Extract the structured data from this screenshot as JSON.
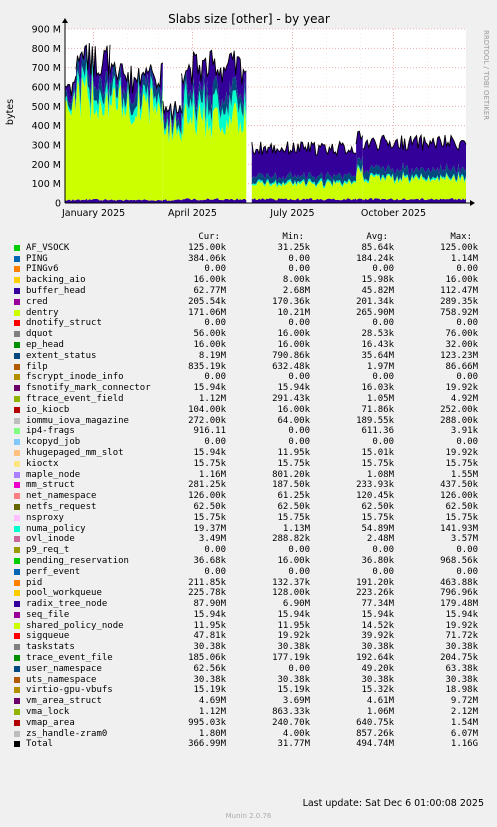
{
  "chart_data": {
    "type": "area",
    "title": "Slabs size [other] - by year",
    "ylabel": "bytes",
    "ylim": [
      0,
      900000000
    ],
    "yticks": [
      "0",
      "100 M",
      "200 M",
      "300 M",
      "400 M",
      "500 M",
      "600 M",
      "700 M",
      "800 M",
      "900 M"
    ],
    "xticks": [
      "January 2025",
      "April 2025",
      "July 2025",
      "October 2025"
    ],
    "side_label": "RRDTOOL / TOBI OETIKER",
    "grid": true,
    "profile": {
      "x_start": "2024-12-06",
      "x_end": "2025-12-06",
      "x_ticks_dates": [
        "2025-01-01",
        "2025-04-01",
        "2025-07-01",
        "2025-10-01"
      ],
      "series_order": [
        "buffer_head",
        "dentry",
        "numa_policy",
        "extent_status",
        "Total"
      ],
      "phases": [
        {
          "from": "2024-12-06",
          "to": "2024-12-16",
          "buffer_head": 15000000,
          "dentry": 530000000,
          "numa_policy": 20000000,
          "extent_status": 30000000,
          "total": 630000000
        },
        {
          "from": "2024-12-16",
          "to": "2025-01-16",
          "buffer_head": 18000000,
          "dentry": 540000000,
          "numa_policy": 60000000,
          "extent_status": 70000000,
          "total": 760000000
        },
        {
          "from": "2025-01-16",
          "to": "2025-03-05",
          "buffer_head": 15000000,
          "dentry": 500000000,
          "numa_policy": 50000000,
          "extent_status": 60000000,
          "total": 660000000
        },
        {
          "from": "2025-03-05",
          "to": "2025-03-22",
          "buffer_head": 15000000,
          "dentry": 380000000,
          "numa_policy": 30000000,
          "extent_status": 40000000,
          "total": 490000000
        },
        {
          "from": "2025-03-22",
          "to": "2025-05-20",
          "buffer_head": 20000000,
          "dentry": 420000000,
          "numa_policy": 90000000,
          "extent_status": 60000000,
          "total": 720000000
        },
        {
          "from": "2025-05-25",
          "to": "2025-08-28",
          "buffer_head": 20000000,
          "dentry": 80000000,
          "numa_policy": 10000000,
          "extent_status": 30000000,
          "total": 290000000
        },
        {
          "from": "2025-08-28",
          "to": "2025-09-03",
          "buffer_head": 20000000,
          "dentry": 150000000,
          "numa_policy": 10000000,
          "extent_status": 40000000,
          "total": 340000000
        },
        {
          "from": "2025-09-03",
          "to": "2025-12-06",
          "buffer_head": 20000000,
          "dentry": 110000000,
          "numa_policy": 10000000,
          "extent_status": 40000000,
          "total": 320000000
        }
      ]
    },
    "legend_header": [
      "Cur:",
      "Min:",
      "Avg:",
      "Max:"
    ],
    "series": [
      {
        "name": "AF_VSOCK",
        "color": "#00cc00",
        "cur": "125.00k",
        "min": "31.25k",
        "avg": "85.64k",
        "max": "125.00k"
      },
      {
        "name": "PING",
        "color": "#0066b3",
        "cur": "384.06k",
        "min": "0.00",
        "avg": "184.24k",
        "max": "1.14M"
      },
      {
        "name": "PINGv6",
        "color": "#ff8000",
        "cur": "0.00",
        "min": "0.00",
        "avg": "0.00",
        "max": "0.00"
      },
      {
        "name": "backing_aio",
        "color": "#ffcc00",
        "cur": "16.00k",
        "min": "8.00k",
        "avg": "15.98k",
        "max": "16.00k"
      },
      {
        "name": "buffer_head",
        "color": "#330099",
        "cur": "62.77M",
        "min": "2.68M",
        "avg": "45.82M",
        "max": "112.47M"
      },
      {
        "name": "cred",
        "color": "#990099",
        "cur": "205.54k",
        "min": "170.36k",
        "avg": "201.34k",
        "max": "289.35k"
      },
      {
        "name": "dentry",
        "color": "#ccff00",
        "cur": "171.06M",
        "min": "10.21M",
        "avg": "265.90M",
        "max": "758.92M"
      },
      {
        "name": "dnotify_struct",
        "color": "#ff0000",
        "cur": "0.00",
        "min": "0.00",
        "avg": "0.00",
        "max": "0.00"
      },
      {
        "name": "dquot",
        "color": "#808080",
        "cur": "56.00k",
        "min": "16.00k",
        "avg": "28.53k",
        "max": "76.00k"
      },
      {
        "name": "ep_head",
        "color": "#008f00",
        "cur": "16.00k",
        "min": "16.00k",
        "avg": "16.43k",
        "max": "32.00k"
      },
      {
        "name": "extent_status",
        "color": "#00487d",
        "cur": "8.19M",
        "min": "790.86k",
        "avg": "35.64M",
        "max": "123.23M"
      },
      {
        "name": "filp",
        "color": "#b35a00",
        "cur": "835.19k",
        "min": "632.48k",
        "avg": "1.97M",
        "max": "86.66M"
      },
      {
        "name": "fscrypt_inode_info",
        "color": "#b38f00",
        "cur": "0.00",
        "min": "0.00",
        "avg": "0.00",
        "max": "0.00"
      },
      {
        "name": "fsnotify_mark_connector",
        "color": "#6b006b",
        "cur": "15.94k",
        "min": "15.94k",
        "avg": "16.03k",
        "max": "19.92k"
      },
      {
        "name": "ftrace_event_field",
        "color": "#8fb300",
        "cur": "1.12M",
        "min": "291.43k",
        "avg": "1.05M",
        "max": "4.92M"
      },
      {
        "name": "io_kiocb",
        "color": "#b30000",
        "cur": "104.00k",
        "min": "16.00k",
        "avg": "71.86k",
        "max": "252.00k"
      },
      {
        "name": "iommu_iova_magazine",
        "color": "#bebebe",
        "cur": "272.00k",
        "min": "64.00k",
        "avg": "189.55k",
        "max": "288.00k"
      },
      {
        "name": "ip4-frags",
        "color": "#80ff80",
        "cur": "916.11",
        "min": "0.00",
        "avg": "611.36",
        "max": "3.91k"
      },
      {
        "name": "kcopyd_job",
        "color": "#80c9ff",
        "cur": "0.00",
        "min": "0.00",
        "avg": "0.00",
        "max": "0.00"
      },
      {
        "name": "khugepaged_mm_slot",
        "color": "#ffc080",
        "cur": "15.94k",
        "min": "11.95k",
        "avg": "15.01k",
        "max": "19.92k"
      },
      {
        "name": "kioctx",
        "color": "#ffe680",
        "cur": "15.75k",
        "min": "15.75k",
        "avg": "15.75k",
        "max": "15.75k"
      },
      {
        "name": "maple_node",
        "color": "#aa80ff",
        "cur": "1.16M",
        "min": "801.20k",
        "avg": "1.08M",
        "max": "1.55M"
      },
      {
        "name": "mm_struct",
        "color": "#ee00cc",
        "cur": "281.25k",
        "min": "187.50k",
        "avg": "233.93k",
        "max": "437.50k"
      },
      {
        "name": "net_namespace",
        "color": "#ff8080",
        "cur": "126.00k",
        "min": "61.25k",
        "avg": "120.45k",
        "max": "126.00k"
      },
      {
        "name": "netfs_request",
        "color": "#666600",
        "cur": "62.50k",
        "min": "62.50k",
        "avg": "62.50k",
        "max": "62.50k"
      },
      {
        "name": "nsproxy",
        "color": "#ffbfff",
        "cur": "15.75k",
        "min": "15.75k",
        "avg": "15.75k",
        "max": "15.75k"
      },
      {
        "name": "numa_policy",
        "color": "#00ffcc",
        "cur": "19.37M",
        "min": "1.13M",
        "avg": "54.89M",
        "max": "141.93M"
      },
      {
        "name": "ovl_inode",
        "color": "#cc6699",
        "cur": "3.49M",
        "min": "288.82k",
        "avg": "2.48M",
        "max": "3.57M"
      },
      {
        "name": "p9_req_t",
        "color": "#999900",
        "cur": "0.00",
        "min": "0.00",
        "avg": "0.00",
        "max": "0.00"
      },
      {
        "name": "pending_reservation",
        "color": "#00cc00",
        "cur": "36.68k",
        "min": "16.00k",
        "avg": "36.80k",
        "max": "968.56k"
      },
      {
        "name": "perf_event",
        "color": "#0066b3",
        "cur": "0.00",
        "min": "0.00",
        "avg": "0.00",
        "max": "0.00"
      },
      {
        "name": "pid",
        "color": "#ff8000",
        "cur": "211.85k",
        "min": "132.37k",
        "avg": "191.20k",
        "max": "463.88k"
      },
      {
        "name": "pool_workqueue",
        "color": "#ffcc00",
        "cur": "225.78k",
        "min": "128.00k",
        "avg": "223.26k",
        "max": "796.96k"
      },
      {
        "name": "radix_tree_node",
        "color": "#330099",
        "cur": "87.90M",
        "min": "6.90M",
        "avg": "77.34M",
        "max": "179.48M"
      },
      {
        "name": "seq_file",
        "color": "#990099",
        "cur": "15.94k",
        "min": "15.94k",
        "avg": "15.94k",
        "max": "15.94k"
      },
      {
        "name": "shared_policy_node",
        "color": "#ccff00",
        "cur": "11.95k",
        "min": "11.95k",
        "avg": "14.52k",
        "max": "19.92k"
      },
      {
        "name": "sigqueue",
        "color": "#ff0000",
        "cur": "47.81k",
        "min": "19.92k",
        "avg": "39.92k",
        "max": "71.72k"
      },
      {
        "name": "taskstats",
        "color": "#808080",
        "cur": "30.38k",
        "min": "30.38k",
        "avg": "30.38k",
        "max": "30.38k"
      },
      {
        "name": "trace_event_file",
        "color": "#008f00",
        "cur": "185.06k",
        "min": "177.19k",
        "avg": "192.64k",
        "max": "204.75k"
      },
      {
        "name": "user_namespace",
        "color": "#00487d",
        "cur": "62.56k",
        "min": "0.00",
        "avg": "49.20k",
        "max": "63.38k"
      },
      {
        "name": "uts_namespace",
        "color": "#b35a00",
        "cur": "30.38k",
        "min": "30.38k",
        "avg": "30.38k",
        "max": "30.38k"
      },
      {
        "name": "virtio-gpu-vbufs",
        "color": "#b38f00",
        "cur": "15.19k",
        "min": "15.19k",
        "avg": "15.32k",
        "max": "18.98k"
      },
      {
        "name": "vm_area_struct",
        "color": "#6b006b",
        "cur": "4.69M",
        "min": "3.69M",
        "avg": "4.61M",
        "max": "9.72M"
      },
      {
        "name": "vma_lock",
        "color": "#8fb300",
        "cur": "1.12M",
        "min": "863.33k",
        "avg": "1.06M",
        "max": "2.12M"
      },
      {
        "name": "vmap_area",
        "color": "#b30000",
        "cur": "995.03k",
        "min": "240.70k",
        "avg": "640.75k",
        "max": "1.54M"
      },
      {
        "name": "zs_handle-zram0",
        "color": "#bebebe",
        "cur": "1.80M",
        "min": "4.00k",
        "avg": "857.26k",
        "max": "6.07M"
      },
      {
        "name": "Total",
        "color": "#000000",
        "cur": "366.99M",
        "min": "31.77M",
        "avg": "494.74M",
        "max": "1.16G"
      }
    ],
    "footer": "Last update: Sat Dec  6 01:00:08 2025",
    "version": "Munin 2.0.76"
  }
}
